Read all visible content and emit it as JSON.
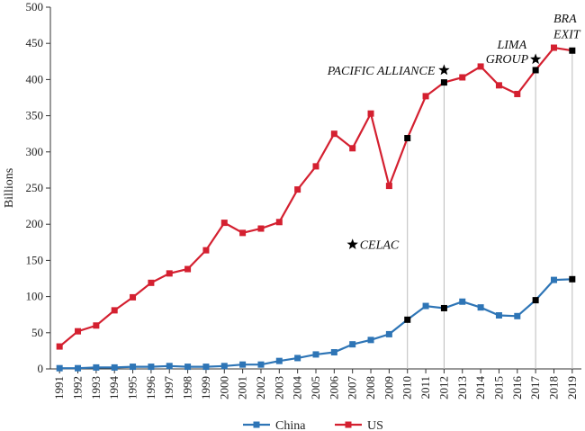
{
  "chart_data": {
    "type": "line",
    "title": "",
    "xlabel": "",
    "ylabel": "Billions",
    "ylim": [
      0,
      500
    ],
    "yticks": [
      0,
      50,
      100,
      150,
      200,
      250,
      300,
      350,
      400,
      450,
      500
    ],
    "x": [
      "1991",
      "1992",
      "1993",
      "1994",
      "1995",
      "1996",
      "1997",
      "1998",
      "1999",
      "2000",
      "2001",
      "2002",
      "2003",
      "2004",
      "2005",
      "2006",
      "2007",
      "2008",
      "2009",
      "2010",
      "2011",
      "2012",
      "2013",
      "2014",
      "2015",
      "2016",
      "2017",
      "2018",
      "2019"
    ],
    "series": [
      {
        "name": "China",
        "color": "#2e75b6",
        "values": [
          1,
          1,
          2,
          2,
          3,
          3,
          4,
          3,
          3,
          4,
          6,
          6,
          11,
          15,
          20,
          23,
          34,
          40,
          48,
          68,
          87,
          84,
          93,
          85,
          74,
          73,
          95,
          123,
          124
        ]
      },
      {
        "name": "US",
        "color": "#d42030",
        "values": [
          31,
          52,
          60,
          81,
          99,
          119,
          132,
          138,
          164,
          202,
          188,
          194,
          203,
          248,
          280,
          325,
          305,
          353,
          253,
          319,
          377,
          396,
          403,
          418,
          392,
          380,
          413,
          444,
          440
        ]
      }
    ],
    "highlight_years": [
      "2010",
      "2012",
      "2017",
      "2019"
    ],
    "annotations": [
      {
        "text": "CELAC",
        "x": "2007.5",
        "y": 175
      },
      {
        "text": "PACIFIC ALLIANCE",
        "x": "2012",
        "y": 415
      },
      {
        "text": "LIMA",
        "x": "2017",
        "y": 450
      },
      {
        "text": "GROUP",
        "x": "2017",
        "y": 430
      },
      {
        "text": "BRA",
        "x": "2019",
        "y": 485
      },
      {
        "text": "EXIT",
        "x": "2019",
        "y": 465
      }
    ],
    "legend": {
      "position": "bottom"
    },
    "grid": false
  }
}
